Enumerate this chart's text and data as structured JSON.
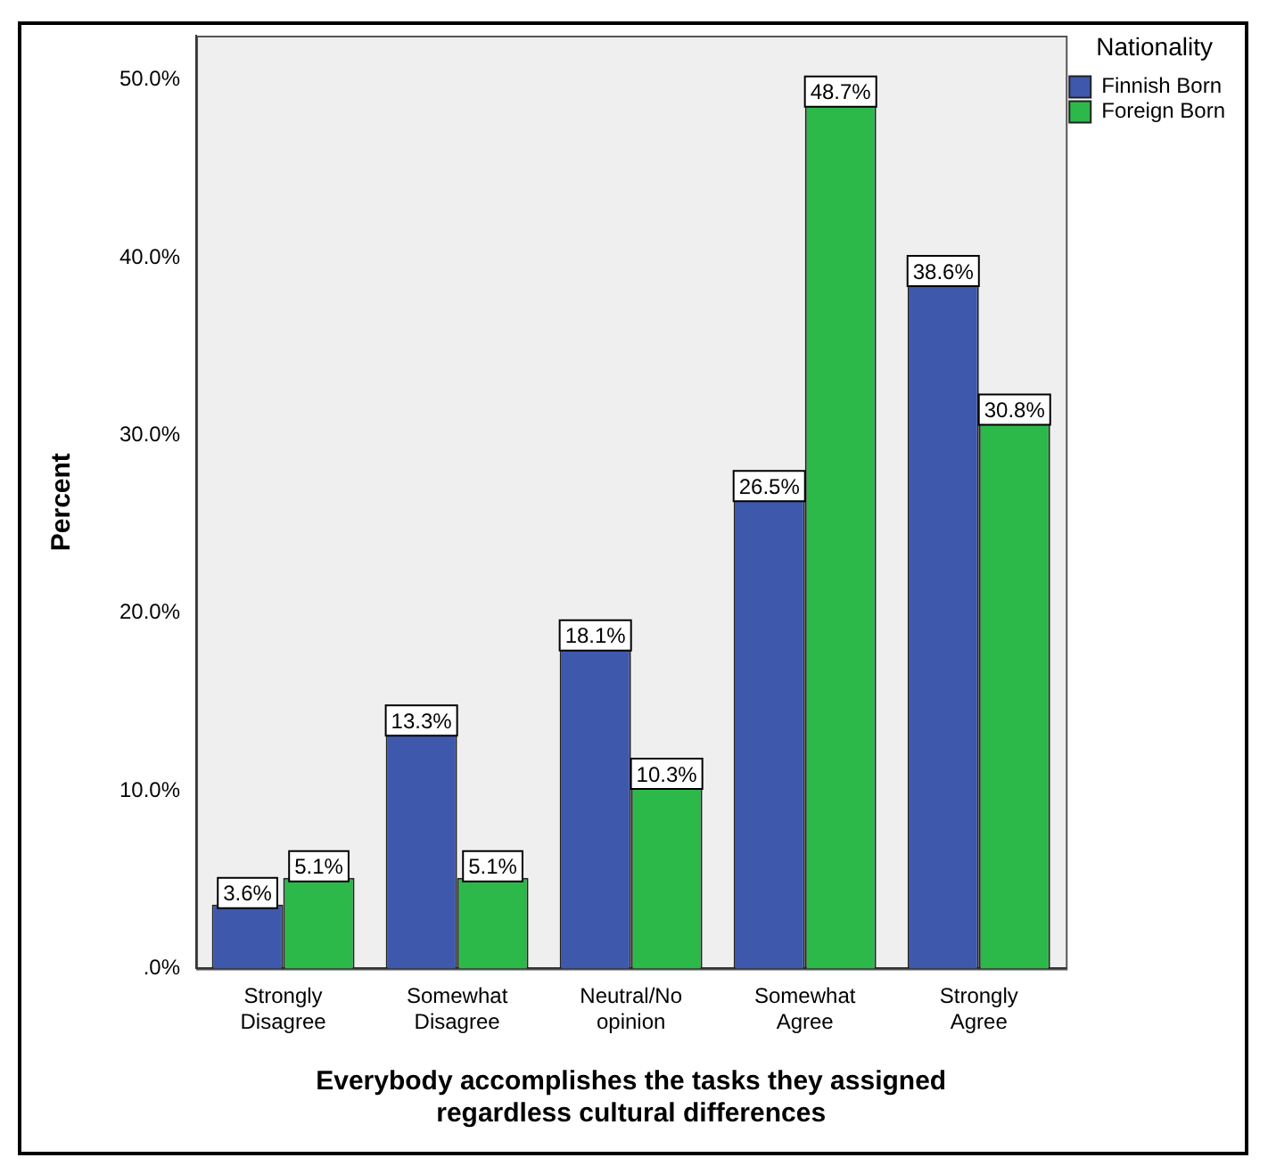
{
  "chart_data": {
    "type": "bar",
    "xlabel": "Everybody accomplishes the tasks they assigned regardless cultural differences",
    "ylabel": "Percent",
    "legend_title": "Nationality",
    "legend": "top right",
    "grid": false,
    "categories": [
      "Strongly Disagree",
      "Somewhat Disagree",
      "Neutral/No opinion",
      "Somewhat Agree",
      "Strongly Agree"
    ],
    "series": [
      {
        "name": "Finnish Born",
        "color": "#3e58ac",
        "values": [
          3.6,
          13.3,
          18.1,
          26.5,
          38.6
        ],
        "value_labels": [
          "3.6%",
          "13.3%",
          "18.1%",
          "26.5%",
          "38.6%"
        ]
      },
      {
        "name": "Foreign Born",
        "color": "#2db84a",
        "values": [
          5.1,
          5.1,
          10.3,
          48.7,
          30.8
        ],
        "value_labels": [
          "5.1%",
          "5.1%",
          "10.3%",
          "48.7%",
          "30.8%"
        ]
      }
    ],
    "ylim": [
      0,
      52.5
    ],
    "yticks": [
      {
        "value": 0,
        "label": ".0%"
      },
      {
        "value": 10,
        "label": "10.0%"
      },
      {
        "value": 20,
        "label": "20.0%"
      },
      {
        "value": 30,
        "label": "30.0%"
      },
      {
        "value": 40,
        "label": "40.0%"
      },
      {
        "value": 50,
        "label": "50.0%"
      }
    ]
  }
}
